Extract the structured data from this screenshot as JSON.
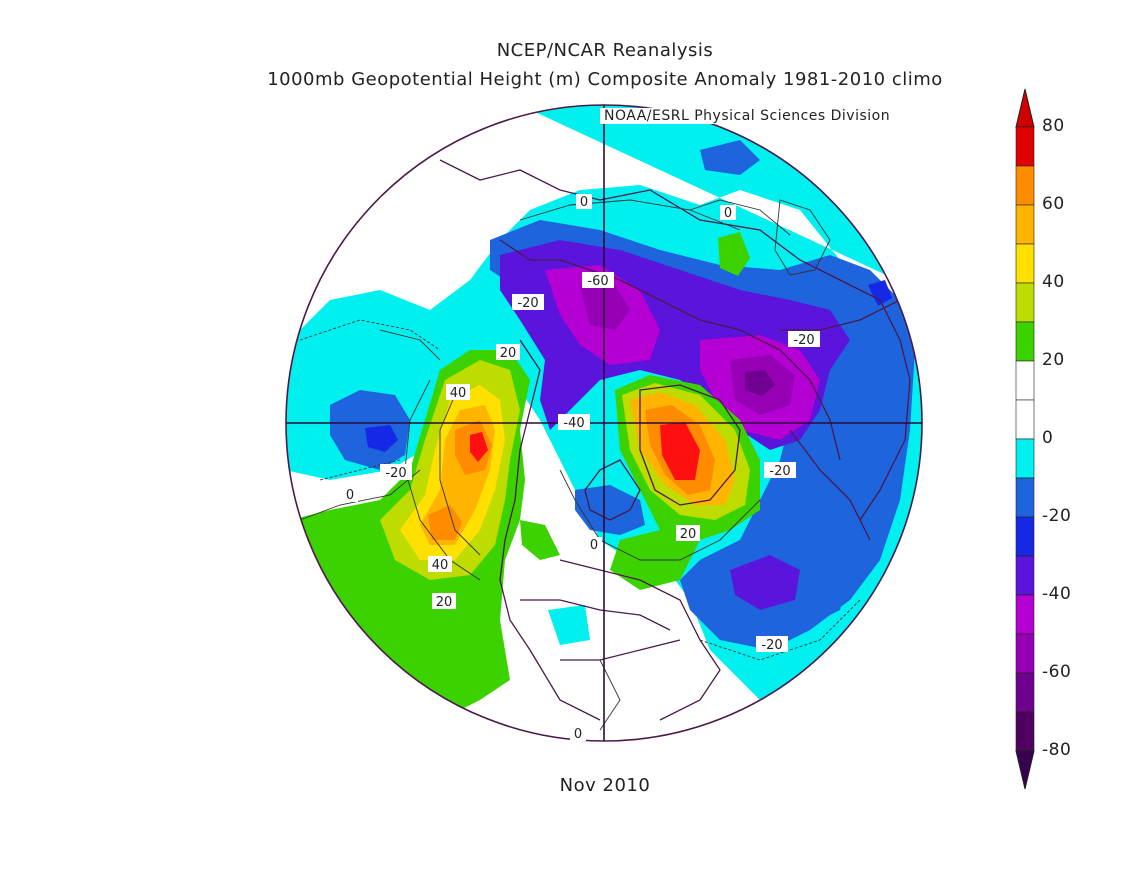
{
  "header": {
    "title": "NCEP/NCAR Reanalysis",
    "subtitle": "1000mb Geopotential Height (m) Composite Anomaly 1981-2010 climo",
    "credit": "NOAA/ESRL Physical Sciences Division"
  },
  "footer": {
    "date": "Nov 2010"
  },
  "colorbar": {
    "levels": [
      {
        "label": "80",
        "color": "#e00000"
      },
      {
        "label": "",
        "color": "#ff1010"
      },
      {
        "label": "60",
        "color": "#ff8c00"
      },
      {
        "label": "",
        "color": "#ffb400"
      },
      {
        "label": "40",
        "color": "#ffe000"
      },
      {
        "label": "",
        "color": "#bedc00"
      },
      {
        "label": "20",
        "color": "#3cd200"
      },
      {
        "label": "",
        "color": "#ffffff"
      },
      {
        "label": "0",
        "color": "#ffffff"
      },
      {
        "label": "",
        "color": "#00f0f0"
      },
      {
        "label": "-20",
        "color": "#1e64dc"
      },
      {
        "label": "",
        "color": "#1428e6"
      },
      {
        "label": "-40",
        "color": "#5a14dc"
      },
      {
        "label": "",
        "color": "#b400d2"
      },
      {
        "label": "-60",
        "color": "#9600b4"
      },
      {
        "label": "",
        "color": "#700090"
      },
      {
        "label": "-80",
        "color": "#500060"
      }
    ],
    "tick_labels": [
      "80",
      "60",
      "40",
      "20",
      "0",
      "-20",
      "-40",
      "-60",
      "-80"
    ],
    "arrow_top_color": "#d00000",
    "arrow_bottom_color": "#3a0050"
  },
  "contour_labels": [
    {
      "text": "0"
    },
    {
      "text": "-60"
    },
    {
      "text": "-20"
    },
    {
      "text": "0"
    },
    {
      "text": "20"
    },
    {
      "text": "40"
    },
    {
      "text": "-40"
    },
    {
      "text": "-20"
    },
    {
      "text": "-20"
    },
    {
      "text": "0"
    },
    {
      "text": "20"
    },
    {
      "text": "0"
    },
    {
      "text": "40"
    },
    {
      "text": "20"
    },
    {
      "text": "-20"
    },
    {
      "text": "-20"
    },
    {
      "text": "0"
    }
  ],
  "anomaly_colors": {
    "cyan": "#00f0f0",
    "blue": "#1e64dc",
    "darkblue": "#1428e6",
    "indigo": "#5a14dc",
    "magenta": "#b400d2",
    "purple": "#9600b4",
    "darkpurple": "#700090",
    "green": "#3cd200",
    "yellowgreen": "#bedc00",
    "yellow": "#ffe000",
    "orange": "#ffb400",
    "darkorange": "#ff8c00",
    "red": "#ff1010"
  }
}
